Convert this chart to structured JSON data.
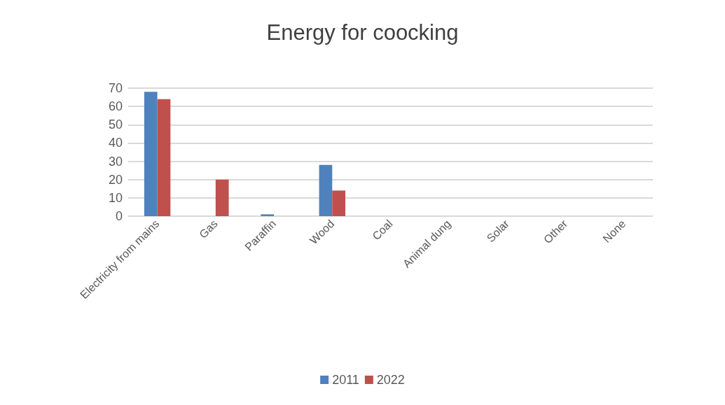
{
  "chart_data": {
    "type": "bar",
    "title": "Energy for coocking",
    "categories": [
      "Electricity from mains",
      "Gas",
      "Paraffin",
      "Wood",
      "Coal",
      "Animal dung",
      "Solar",
      "Other",
      "None"
    ],
    "series": [
      {
        "name": "2011",
        "color": "#4f81bd",
        "values": [
          68,
          0,
          1,
          28,
          0,
          0,
          0,
          0,
          0
        ]
      },
      {
        "name": "2022",
        "color": "#c0504d",
        "values": [
          64,
          20,
          0,
          14,
          0,
          0,
          0,
          0,
          0
        ]
      }
    ],
    "ylim": [
      0,
      70
    ],
    "yticks": [
      0,
      10,
      20,
      30,
      40,
      50,
      60,
      70
    ],
    "grid": "y",
    "legend": "bottom"
  }
}
